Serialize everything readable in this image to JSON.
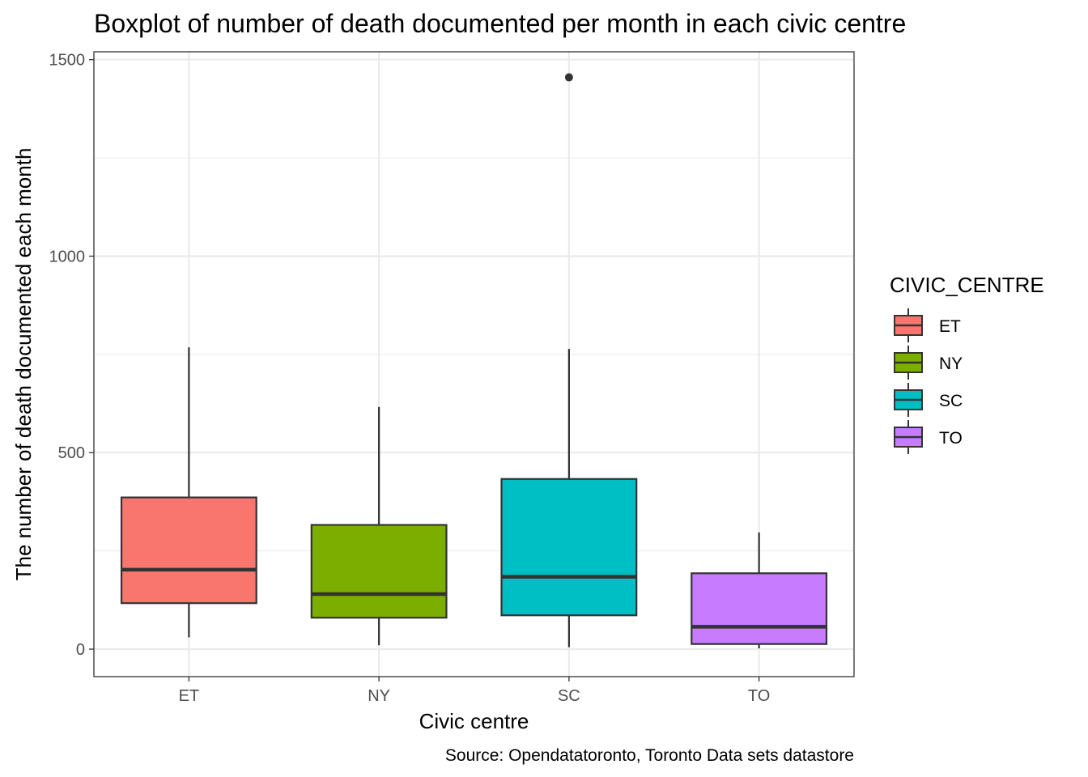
{
  "chart_data": {
    "type": "boxplot",
    "title": "Boxplot of number of death documented per month in each civic centre",
    "xlabel": "Civic centre",
    "ylabel": "The number of death documented each month",
    "caption": "Source: Opendatatoronto, Toronto Data sets datastore",
    "categories": [
      "ET",
      "NY",
      "SC",
      "TO"
    ],
    "ylim": [
      -70,
      1520
    ],
    "yticks": [
      0,
      500,
      1000,
      1500
    ],
    "yticks_labels": [
      "0",
      "500",
      "1000",
      "1500"
    ],
    "grid": true,
    "legend": {
      "title": "CIVIC_CENTRE",
      "position": "right",
      "entries": [
        "ET",
        "NY",
        "SC",
        "TO"
      ]
    },
    "colors": [
      "#F8766D",
      "#7CAE00",
      "#00BFC4",
      "#C77CFF"
    ],
    "boxes": [
      {
        "name": "ET",
        "min": 30,
        "q1": 117,
        "median": 202,
        "q3": 386,
        "max": 768,
        "outliers": []
      },
      {
        "name": "NY",
        "min": 10,
        "q1": 80,
        "median": 140,
        "q3": 316,
        "max": 616,
        "outliers": []
      },
      {
        "name": "SC",
        "min": 5,
        "q1": 86,
        "median": 184,
        "q3": 433,
        "max": 764,
        "outliers": [
          1455
        ]
      },
      {
        "name": "TO",
        "min": 2,
        "q1": 13,
        "median": 57,
        "q3": 193,
        "max": 297,
        "outliers": []
      }
    ]
  }
}
